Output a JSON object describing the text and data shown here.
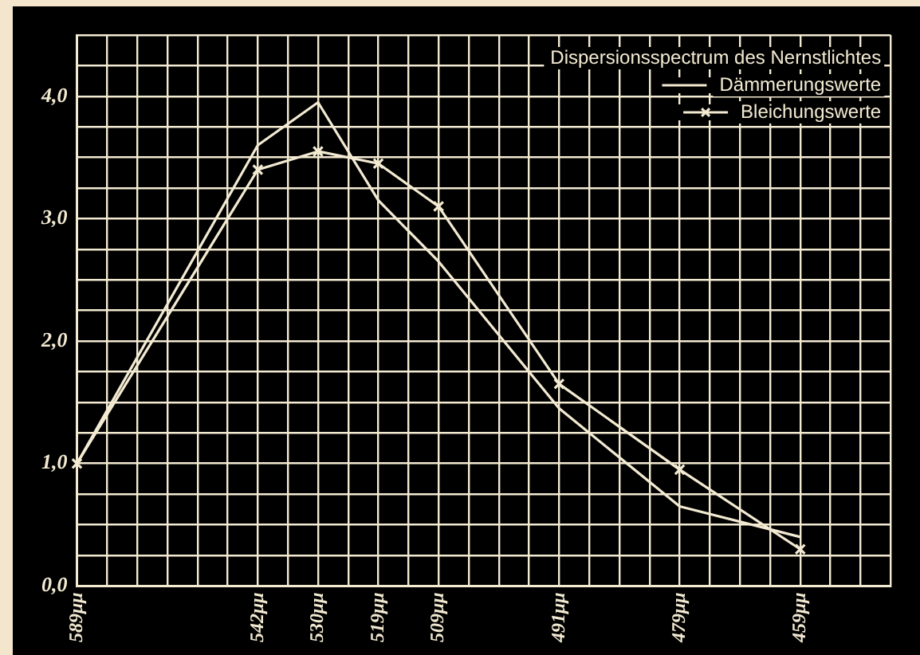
{
  "chart_data": {
    "type": "line",
    "legend_title": "Dispersionsspectrum des Nernstlichtes",
    "categories": [
      "589μμ",
      null,
      null,
      null,
      null,
      null,
      "542μμ",
      null,
      "530μμ",
      null,
      "519μμ",
      null,
      "509μμ",
      null,
      null,
      null,
      "491μμ",
      null,
      null,
      null,
      "479μμ",
      null,
      null,
      null,
      "459μμ",
      null,
      null,
      null
    ],
    "series": [
      {
        "name": "Dämmerungswerte",
        "color": "#f3ead2",
        "marker": "none",
        "values": [
          1.0,
          null,
          null,
          null,
          null,
          null,
          3.6,
          null,
          3.95,
          null,
          3.15,
          null,
          2.65,
          null,
          null,
          null,
          1.45,
          null,
          null,
          null,
          0.65,
          null,
          null,
          null,
          0.4,
          null,
          null,
          null
        ]
      },
      {
        "name": "Bleichungswerte",
        "color": "#f3ead2",
        "marker": "cross",
        "values": [
          1.0,
          null,
          null,
          null,
          null,
          null,
          3.4,
          null,
          3.55,
          null,
          3.45,
          null,
          3.1,
          null,
          null,
          null,
          1.65,
          null,
          null,
          null,
          0.95,
          null,
          null,
          null,
          0.3,
          null,
          null,
          null
        ]
      }
    ],
    "ylim": [
      0,
      4.5
    ],
    "yticks": [
      {
        "value": 0,
        "label": "0,0"
      },
      {
        "value": 0.25,
        "label": null
      },
      {
        "value": 0.5,
        "label": null
      },
      {
        "value": 0.75,
        "label": null
      },
      {
        "value": 1,
        "label": "1,0"
      },
      {
        "value": 1.25,
        "label": null
      },
      {
        "value": 1.5,
        "label": null
      },
      {
        "value": 1.75,
        "label": null
      },
      {
        "value": 2,
        "label": "2,0"
      },
      {
        "value": 2.25,
        "label": null
      },
      {
        "value": 2.5,
        "label": null
      },
      {
        "value": 2.75,
        "label": null
      },
      {
        "value": 3,
        "label": "3,0"
      },
      {
        "value": 3.25,
        "label": null
      },
      {
        "value": 3.5,
        "label": null
      },
      {
        "value": 3.75,
        "label": null
      },
      {
        "value": 4,
        "label": "4,0"
      },
      {
        "value": 4.25,
        "label": null
      },
      {
        "value": 4.5,
        "label": null
      }
    ],
    "grid": true,
    "legend": "top right"
  }
}
